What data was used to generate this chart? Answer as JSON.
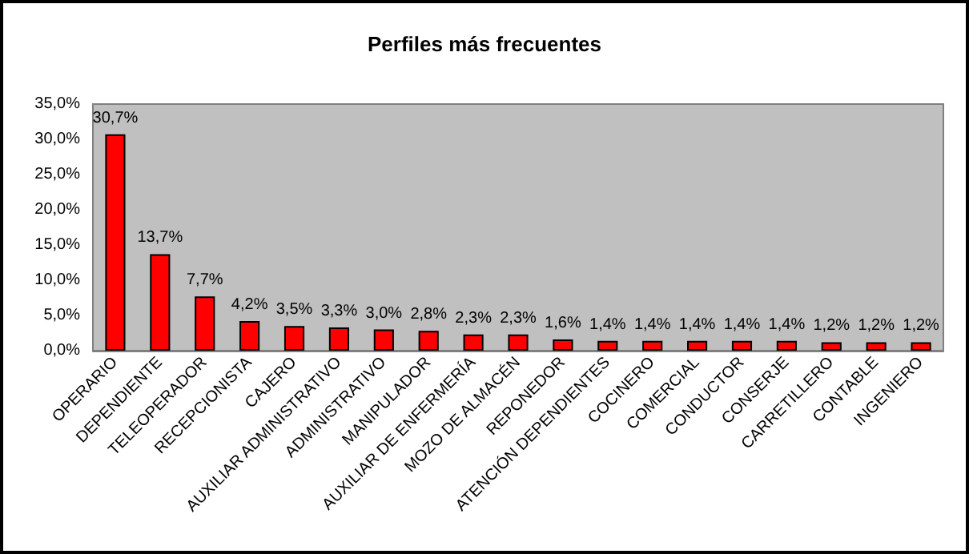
{
  "chart_data": {
    "type": "bar",
    "title": "Perfiles más frecuentes",
    "categories": [
      "OPERARIO",
      "DEPENDIENTE",
      "TELEOPERADOR",
      "RECEPCIONISTA",
      "CAJERO",
      "AUXILIAR ADMINISTRATIVO",
      "ADMINISTRATIVO",
      "MANIPULADOR",
      "AUXILIAR DE ENFERMERÍA",
      "MOZO DE ALMACÉN",
      "REPONEDOR",
      "ATENCIÓN DEPENDIENTES",
      "COCINERO",
      "COMERCIAL",
      "CONDUCTOR",
      "CONSERJE",
      "CARRETILLERO",
      "CONTABLE",
      "INGENIERO"
    ],
    "values": [
      30.7,
      13.7,
      7.7,
      4.2,
      3.5,
      3.3,
      3.0,
      2.8,
      2.3,
      2.3,
      1.6,
      1.4,
      1.4,
      1.4,
      1.4,
      1.4,
      1.2,
      1.2,
      1.2
    ],
    "value_labels": [
      "30,7%",
      "13,7%",
      "7,7%",
      "4,2%",
      "3,5%",
      "3,3%",
      "3,0%",
      "2,8%",
      "2,3%",
      "2,3%",
      "1,6%",
      "1,4%",
      "1,4%",
      "1,4%",
      "1,4%",
      "1,4%",
      "1,2%",
      "1,2%",
      "1,2%"
    ],
    "color": "#ff0000",
    "yticks": [
      {
        "value": 0,
        "label": "0,0%"
      },
      {
        "value": 5,
        "label": "5,0%"
      },
      {
        "value": 10,
        "label": "10,0%"
      },
      {
        "value": 15,
        "label": "15,0%"
      },
      {
        "value": 20,
        "label": "20,0%"
      },
      {
        "value": 25,
        "label": "25,0%"
      },
      {
        "value": 30,
        "label": "30,0%"
      },
      {
        "value": 35,
        "label": "35,0%"
      }
    ],
    "ylim": [
      0,
      35
    ]
  }
}
